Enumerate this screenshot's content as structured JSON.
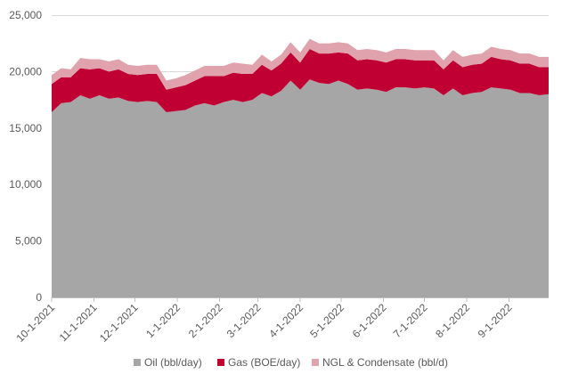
{
  "chart_data": {
    "type": "area",
    "stacked": true,
    "title": "",
    "xlabel": "",
    "ylabel": "",
    "ylim": [
      0,
      25000
    ],
    "yticks": [
      0,
      5000,
      10000,
      15000,
      20000,
      25000
    ],
    "ytick_labels": [
      "0",
      "5,000",
      "10,000",
      "15,000",
      "20,000",
      "25,000"
    ],
    "grid": true,
    "legend_position": "bottom",
    "x_dates": [
      "2021-10-01",
      "2021-10-08",
      "2021-10-15",
      "2021-10-22",
      "2021-10-29",
      "2021-11-05",
      "2021-11-12",
      "2021-11-19",
      "2021-11-26",
      "2021-12-03",
      "2021-12-10",
      "2021-12-17",
      "2021-12-24",
      "2021-12-31",
      "2022-01-07",
      "2022-01-14",
      "2022-01-21",
      "2022-01-28",
      "2022-02-04",
      "2022-02-11",
      "2022-02-18",
      "2022-02-25",
      "2022-03-04",
      "2022-03-11",
      "2022-03-18",
      "2022-03-25",
      "2022-04-01",
      "2022-04-08",
      "2022-04-15",
      "2022-04-22",
      "2022-04-29",
      "2022-05-06",
      "2022-05-13",
      "2022-05-20",
      "2022-05-27",
      "2022-06-03",
      "2022-06-10",
      "2022-06-17",
      "2022-06-24",
      "2022-07-01",
      "2022-07-08",
      "2022-07-15",
      "2022-07-22",
      "2022-07-29",
      "2022-08-05",
      "2022-08-12",
      "2022-08-19",
      "2022-08-26",
      "2022-09-02",
      "2022-09-09",
      "2022-09-16",
      "2022-09-23",
      "2022-09-30"
    ],
    "x_tick_labels": [
      {
        "date": "2021-10-01",
        "label": "10-1-2021"
      },
      {
        "date": "2021-11-01",
        "label": "11-1-2021"
      },
      {
        "date": "2021-12-01",
        "label": "12-1-2021"
      },
      {
        "date": "2022-01-01",
        "label": "1-1-2022"
      },
      {
        "date": "2022-02-01",
        "label": "2-1-2022"
      },
      {
        "date": "2022-03-01",
        "label": "3-1-2022"
      },
      {
        "date": "2022-04-01",
        "label": "4-1-2022"
      },
      {
        "date": "2022-05-01",
        "label": "5-1-2022"
      },
      {
        "date": "2022-06-01",
        "label": "6-1-2022"
      },
      {
        "date": "2022-07-01",
        "label": "7-1-2022"
      },
      {
        "date": "2022-08-01",
        "label": "8-1-2022"
      },
      {
        "date": "2022-09-01",
        "label": "9-1-2022"
      }
    ],
    "series": [
      {
        "name": "Oil (bbl/day)",
        "color": "#a6a6a6",
        "values": [
          16400,
          17200,
          17300,
          17900,
          17600,
          17900,
          17600,
          17700,
          17400,
          17300,
          17400,
          17300,
          16400,
          16500,
          16600,
          17000,
          17200,
          17000,
          17300,
          17500,
          17300,
          17500,
          18100,
          17800,
          18300,
          19200,
          18400,
          19300,
          19000,
          18900,
          19200,
          18900,
          18400,
          18500,
          18400,
          18200,
          18600,
          18600,
          18500,
          18600,
          18500,
          17900,
          18500,
          17900,
          18100,
          18200,
          18600,
          18500,
          18400,
          18100,
          18100,
          17900,
          18000
        ]
      },
      {
        "name": "Gas (BOE/day)",
        "color": "#c00033",
        "values": [
          2500,
          2300,
          2200,
          2400,
          2600,
          2400,
          2400,
          2500,
          2400,
          2400,
          2400,
          2500,
          2000,
          2100,
          2200,
          2200,
          2400,
          2600,
          2300,
          2400,
          2500,
          2300,
          2500,
          2300,
          2400,
          2500,
          2400,
          2700,
          2600,
          2700,
          2500,
          2700,
          2600,
          2600,
          2600,
          2600,
          2500,
          2500,
          2500,
          2400,
          2500,
          2300,
          2500,
          2500,
          2500,
          2500,
          2700,
          2600,
          2600,
          2600,
          2600,
          2500,
          2400
        ]
      },
      {
        "name": "NGL & Condensate (bbl/d)",
        "color": "#e0a3ad",
        "values": [
          800,
          800,
          700,
          900,
          900,
          800,
          900,
          900,
          800,
          800,
          800,
          800,
          800,
          800,
          900,
          900,
          900,
          900,
          900,
          900,
          900,
          800,
          900,
          800,
          800,
          900,
          900,
          900,
          900,
          900,
          900,
          900,
          900,
          900,
          900,
          900,
          900,
          900,
          900,
          900,
          900,
          800,
          900,
          900,
          900,
          900,
          900,
          900,
          900,
          900,
          900,
          900,
          900
        ]
      }
    ]
  }
}
